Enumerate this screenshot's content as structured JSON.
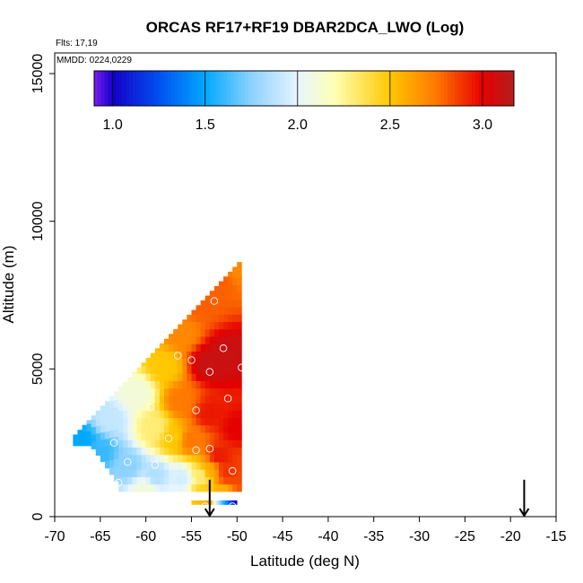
{
  "chart_data": {
    "type": "heatmap",
    "title": "ORCAS RF17+RF19 DBAR2DCA_LWO (Log)",
    "corner_text": {
      "flights": "Flts: 17,19",
      "dates": "MMDD: 0224,0229"
    },
    "xlabel": "Latitude (deg N)",
    "ylabel": "Altitude (m)",
    "xlim": [
      -70,
      -15
    ],
    "ylim": [
      0,
      15700
    ],
    "x_ticks": [
      -70,
      -65,
      -60,
      -55,
      -50,
      -45,
      -40,
      -35,
      -30,
      -25,
      -20,
      -15
    ],
    "x_tick_labels": [
      "-70",
      "-65",
      "-60",
      "-55",
      "-50",
      "-45",
      "-40",
      "-35",
      "-30",
      "-25",
      "-20",
      "-15"
    ],
    "y_ticks": [
      0,
      5000,
      10000,
      15000
    ],
    "y_tick_labels": [
      "0",
      "5000",
      "10000",
      "15000"
    ],
    "colorbar": {
      "range": [
        0.9,
        3.17
      ],
      "ticks": [
        1.0,
        1.5,
        2.0,
        2.5,
        3.0
      ],
      "tick_labels": [
        "1.0",
        "1.5",
        "2.0",
        "2.5",
        "3.0"
      ],
      "stops": [
        {
          "v": 0.9,
          "color": "#7a1ff0"
        },
        {
          "v": 1.0,
          "color": "#1400c8"
        },
        {
          "v": 1.25,
          "color": "#0050f0"
        },
        {
          "v": 1.5,
          "color": "#00a8ff"
        },
        {
          "v": 1.75,
          "color": "#8cd2ff"
        },
        {
          "v": 2.0,
          "color": "#e6f5ff"
        },
        {
          "v": 2.2,
          "color": "#ffffb4"
        },
        {
          "v": 2.5,
          "color": "#ffc800"
        },
        {
          "v": 2.75,
          "color": "#ff7800"
        },
        {
          "v": 3.0,
          "color": "#e60000"
        },
        {
          "v": 3.17,
          "color": "#b41e1e"
        }
      ]
    },
    "field": {
      "lat_step": 0.5,
      "lat_min": -68,
      "lat_max": -49.5,
      "alt_step": 250,
      "anchors": [
        {
          "lat": -67,
          "alt": 2600,
          "v": 1.5
        },
        {
          "lat": -64,
          "alt": 3300,
          "v": 1.9
        },
        {
          "lat": -61,
          "alt": 4200,
          "v": 2.1
        },
        {
          "lat": -58,
          "alt": 5100,
          "v": 2.5
        },
        {
          "lat": -56,
          "alt": 6200,
          "v": 2.7
        },
        {
          "lat": -54,
          "alt": 7200,
          "v": 2.8
        },
        {
          "lat": -52,
          "alt": 8000,
          "v": 2.8
        },
        {
          "lat": -50,
          "alt": 8500,
          "v": 2.7
        },
        {
          "lat": -53,
          "alt": 5200,
          "v": 3.1
        },
        {
          "lat": -51,
          "alt": 5500,
          "v": 3.1
        },
        {
          "lat": -50,
          "alt": 3000,
          "v": 3.0
        },
        {
          "lat": -53,
          "alt": 3500,
          "v": 2.95
        },
        {
          "lat": -56,
          "alt": 3900,
          "v": 2.75
        },
        {
          "lat": -59,
          "alt": 3000,
          "v": 2.3
        },
        {
          "lat": -57,
          "alt": 2700,
          "v": 2.5
        },
        {
          "lat": -55,
          "alt": 2600,
          "v": 2.75
        },
        {
          "lat": -52,
          "alt": 2000,
          "v": 2.95
        },
        {
          "lat": -51,
          "alt": 1500,
          "v": 2.9
        },
        {
          "lat": -50,
          "alt": 1200,
          "v": 2.85
        },
        {
          "lat": -65,
          "alt": 2200,
          "v": 1.6
        },
        {
          "lat": -62,
          "alt": 1700,
          "v": 1.75
        },
        {
          "lat": -59,
          "alt": 1400,
          "v": 1.85
        },
        {
          "lat": -56,
          "alt": 1300,
          "v": 1.95
        },
        {
          "lat": -54,
          "alt": 1400,
          "v": 2.3
        },
        {
          "lat": -53,
          "alt": 1600,
          "v": 2.6
        },
        {
          "lat": -60,
          "alt": 950,
          "v": 2.1
        },
        {
          "lat": -54,
          "alt": 650,
          "v": 2.5
        },
        {
          "lat": -51,
          "alt": 700,
          "v": 2.5
        }
      ],
      "bands": [
        {
          "lat0": -55,
          "lat1": -50,
          "alt0": 400,
          "alt1": 550,
          "colors_by_lat": [
            [
              -55,
              2.5
            ],
            [
              -53,
              2.6
            ],
            [
              -52.5,
              2.0
            ],
            [
              -51.5,
              1.5
            ],
            [
              -50.5,
              1.1
            ],
            [
              -50,
              1.0
            ]
          ]
        }
      ]
    },
    "markers": [
      {
        "lat": -52.5,
        "alt": 7300
      },
      {
        "lat": -51.5,
        "alt": 5700
      },
      {
        "lat": -49.5,
        "alt": 5050
      },
      {
        "lat": -56.5,
        "alt": 5450
      },
      {
        "lat": -55,
        "alt": 5300
      },
      {
        "lat": -53,
        "alt": 4900
      },
      {
        "lat": -51,
        "alt": 4000
      },
      {
        "lat": -59.5,
        "alt": 3700
      },
      {
        "lat": -54.5,
        "alt": 3600
      },
      {
        "lat": -57.5,
        "alt": 2650
      },
      {
        "lat": -63.5,
        "alt": 2500
      },
      {
        "lat": -54.5,
        "alt": 2250
      },
      {
        "lat": -53,
        "alt": 2300
      },
      {
        "lat": -62,
        "alt": 1850
      },
      {
        "lat": -59,
        "alt": 1750
      },
      {
        "lat": -50.5,
        "alt": 1550
      },
      {
        "lat": -63,
        "alt": 1150
      },
      {
        "lat": -53.5,
        "alt": 350
      },
      {
        "lat": -50.5,
        "alt": 350
      }
    ],
    "arrows": [
      {
        "lat": -53,
        "alt": 600
      },
      {
        "lat": -18.5,
        "alt": 600
      }
    ]
  }
}
